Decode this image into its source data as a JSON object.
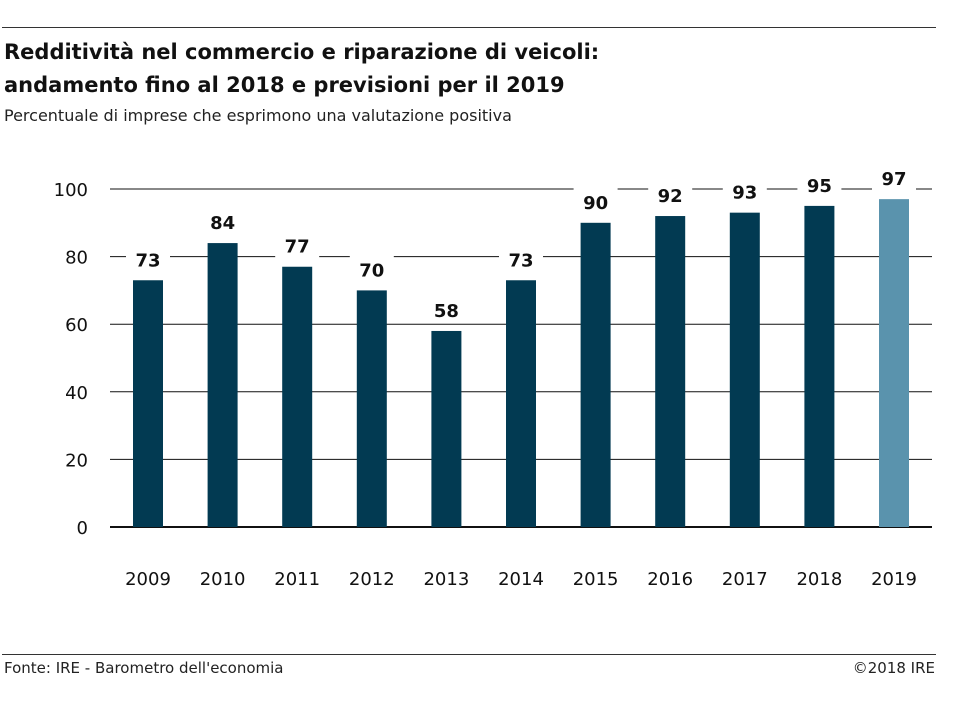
{
  "title_line1": "Redditività nel commercio e riparazione di veicoli:",
  "title_line2": "andamento fino al 2018 e previsioni per il 2019",
  "subtitle": "Percentuale di imprese che esprimono una valutazione positiva",
  "source": "Fonte: IRE - Barometro dell'economia",
  "copyright": "©2018 IRE",
  "colors": {
    "bar": "#023a52",
    "bar_forecast": "#5a93ad",
    "grid": "#111111"
  },
  "chart_data": {
    "type": "bar",
    "categories": [
      "2009",
      "2010",
      "2011",
      "2012",
      "2013",
      "2014",
      "2015",
      "2016",
      "2017",
      "2018",
      "2019"
    ],
    "values": [
      73,
      84,
      77,
      70,
      58,
      73,
      90,
      92,
      93,
      95,
      97
    ],
    "forecast": [
      false,
      false,
      false,
      false,
      false,
      false,
      false,
      false,
      false,
      false,
      true
    ],
    "yticks": [
      0,
      20,
      40,
      60,
      80,
      100
    ],
    "ylim": [
      0,
      100
    ],
    "grid": true,
    "xlabel": "",
    "ylabel": ""
  }
}
